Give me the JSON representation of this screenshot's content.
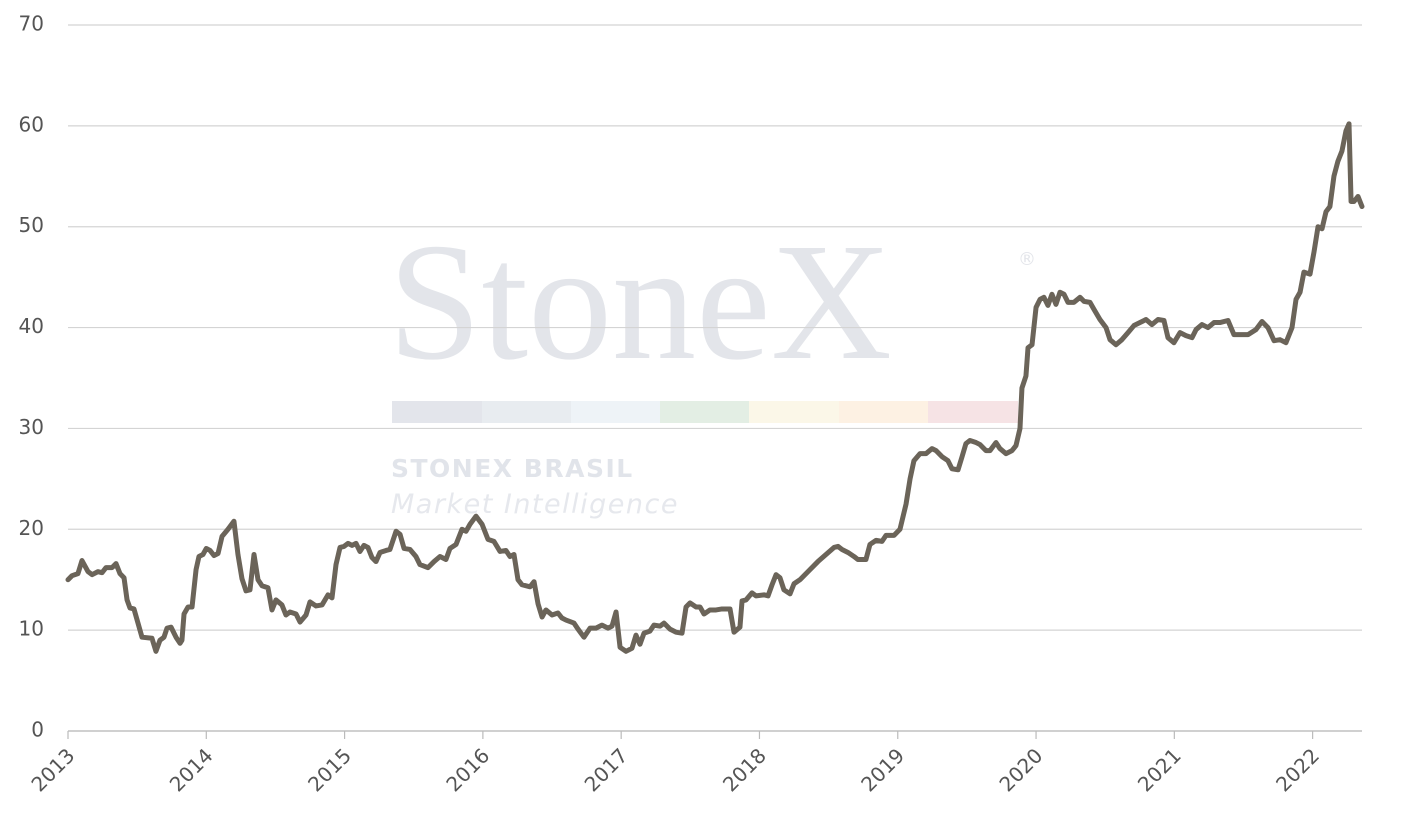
{
  "chart_data": {
    "type": "line",
    "watermark": {
      "logo": "StoneX",
      "mark": "®",
      "name": "STONEX BRASIL",
      "tagline": "Market Intelligence"
    },
    "color": "#6b6459",
    "grid": true,
    "xlim": [
      2013,
      2022.357
    ],
    "xticks": [
      2013,
      2014,
      2015,
      2016,
      2017,
      2018,
      2019,
      2020,
      2021,
      2022
    ],
    "ylim": [
      0,
      70
    ],
    "yticks": [
      0,
      10,
      20,
      30,
      40,
      50,
      60,
      70
    ],
    "x": [
      2013.0,
      2013.029,
      2013.072,
      2013.101,
      2013.145,
      2013.174,
      2013.217,
      2013.246,
      2013.275,
      2013.318,
      2013.347,
      2013.376,
      2013.405,
      2013.427,
      2013.448,
      2013.477,
      2013.535,
      2013.607,
      2013.636,
      2013.665,
      2013.694,
      2013.716,
      2013.745,
      2013.781,
      2013.81,
      2013.824,
      2013.839,
      2013.868,
      2013.897,
      2013.926,
      2013.947,
      2013.976,
      2014.0,
      2014.027,
      2014.056,
      2014.085,
      2014.114,
      2014.157,
      2014.2,
      2014.229,
      2014.258,
      2014.287,
      2014.316,
      2014.345,
      2014.374,
      2014.403,
      2014.446,
      2014.475,
      2014.504,
      2014.547,
      2014.576,
      2014.605,
      2014.649,
      2014.678,
      2014.721,
      2014.75,
      2014.793,
      2014.837,
      2014.88,
      2014.909,
      2014.938,
      2014.967,
      2014.996,
      2015.025,
      2015.054,
      2015.083,
      2015.111,
      2015.14,
      2015.169,
      2015.198,
      2015.227,
      2015.256,
      2015.3,
      2015.328,
      2015.372,
      2015.401,
      2015.43,
      2015.473,
      2015.516,
      2015.545,
      2015.603,
      2015.647,
      2015.69,
      2015.733,
      2015.762,
      2015.806,
      2015.849,
      2015.878,
      2015.907,
      2015.95,
      2015.994,
      2016.037,
      2016.08,
      2016.124,
      2016.167,
      2016.196,
      2016.225,
      2016.254,
      2016.283,
      2016.341,
      2016.37,
      2016.399,
      2016.428,
      2016.456,
      2016.5,
      2016.543,
      2016.572,
      2016.601,
      2016.659,
      2016.688,
      2016.731,
      2016.775,
      2016.818,
      2016.861,
      2016.905,
      2016.934,
      2016.963,
      2016.992,
      2017.035,
      2017.078,
      2017.107,
      2017.136,
      2017.165,
      2017.208,
      2017.237,
      2017.281,
      2017.31,
      2017.353,
      2017.396,
      2017.44,
      2017.469,
      2017.498,
      2017.541,
      2017.57,
      2017.599,
      2017.642,
      2017.686,
      2017.729,
      2017.787,
      2017.816,
      2017.859,
      2017.874,
      2017.903,
      2017.946,
      2017.975,
      2018.033,
      2018.062,
      2018.091,
      2018.12,
      2018.148,
      2018.177,
      2018.221,
      2018.25,
      2018.293,
      2018.351,
      2018.423,
      2018.481,
      2018.539,
      2018.568,
      2018.597,
      2018.64,
      2018.684,
      2018.712,
      2018.77,
      2018.799,
      2018.843,
      2018.886,
      2018.915,
      2018.973,
      2019.016,
      2019.06,
      2019.089,
      2019.117,
      2019.161,
      2019.204,
      2019.248,
      2019.277,
      2019.32,
      2019.363,
      2019.392,
      2019.436,
      2019.465,
      2019.493,
      2019.522,
      2019.566,
      2019.595,
      2019.638,
      2019.667,
      2019.71,
      2019.739,
      2019.783,
      2019.826,
      2019.855,
      2019.884,
      2019.898,
      2019.927,
      2019.942,
      2019.971,
      2020.0,
      2020.029,
      2020.057,
      2020.086,
      2020.115,
      2020.144,
      2020.173,
      2020.202,
      2020.231,
      2020.274,
      2020.318,
      2020.347,
      2020.39,
      2020.419,
      2020.462,
      2020.506,
      2020.535,
      2020.578,
      2020.621,
      2020.665,
      2020.708,
      2020.752,
      2020.795,
      2020.838,
      2020.882,
      2020.925,
      2020.954,
      2020.997,
      2021.041,
      2021.084,
      2021.128,
      2021.157,
      2021.2,
      2021.243,
      2021.287,
      2021.33,
      2021.388,
      2021.431,
      2021.475,
      2021.533,
      2021.59,
      2021.634,
      2021.677,
      2021.721,
      2021.764,
      2021.807,
      2021.851,
      2021.88,
      2021.909,
      2021.937,
      2021.981,
      2022.01,
      2022.039,
      2022.068,
      2022.097,
      2022.125,
      2022.154,
      2022.183,
      2022.212,
      2022.241,
      2022.263,
      2022.278,
      2022.299,
      2022.328,
      2022.357
    ],
    "values": [
      15.0,
      15.4,
      15.6,
      16.9,
      15.8,
      15.5,
      15.8,
      15.7,
      16.2,
      16.2,
      16.6,
      15.6,
      15.2,
      13.0,
      12.2,
      12.1,
      9.3,
      9.2,
      7.9,
      9.0,
      9.3,
      10.2,
      10.3,
      9.3,
      8.7,
      9.0,
      11.6,
      12.3,
      12.3,
      16.0,
      17.3,
      17.5,
      18.1,
      17.9,
      17.4,
      17.6,
      19.3,
      20.0,
      20.8,
      17.5,
      15.1,
      13.9,
      14.0,
      17.5,
      15.0,
      14.4,
      14.2,
      12.0,
      13.0,
      12.5,
      11.5,
      11.8,
      11.6,
      10.8,
      11.5,
      12.8,
      12.4,
      12.5,
      13.5,
      13.2,
      16.5,
      18.2,
      18.3,
      18.6,
      18.4,
      18.6,
      17.8,
      18.4,
      18.2,
      17.2,
      16.8,
      17.7,
      17.9,
      18.0,
      19.8,
      19.5,
      18.1,
      18.0,
      17.3,
      16.5,
      16.2,
      16.8,
      17.3,
      17.0,
      18.1,
      18.5,
      20.0,
      19.8,
      20.5,
      21.3,
      20.5,
      19.0,
      18.8,
      17.8,
      17.9,
      17.3,
      17.5,
      15.0,
      14.5,
      14.3,
      14.8,
      12.6,
      11.3,
      12.0,
      11.5,
      11.7,
      11.2,
      11.0,
      10.7,
      10.1,
      9.3,
      10.2,
      10.2,
      10.5,
      10.2,
      10.4,
      11.8,
      8.3,
      7.9,
      8.2,
      9.5,
      8.6,
      9.7,
      9.9,
      10.5,
      10.4,
      10.7,
      10.1,
      9.8,
      9.7,
      12.3,
      12.7,
      12.3,
      12.3,
      11.6,
      12.0,
      12.0,
      12.1,
      12.1,
      9.8,
      10.3,
      12.9,
      13.0,
      13.7,
      13.4,
      13.5,
      13.4,
      14.5,
      15.5,
      15.2,
      14.0,
      13.6,
      14.6,
      15.0,
      15.8,
      16.8,
      17.5,
      18.2,
      18.3,
      18.0,
      17.7,
      17.3,
      17.0,
      17.0,
      18.5,
      18.9,
      18.8,
      19.4,
      19.4,
      20.0,
      22.5,
      25.0,
      26.8,
      27.5,
      27.5,
      28.0,
      27.8,
      27.2,
      26.8,
      26.0,
      25.9,
      27.2,
      28.5,
      28.8,
      28.6,
      28.4,
      27.8,
      27.8,
      28.6,
      28.0,
      27.5,
      27.8,
      28.3,
      30.0,
      34.0,
      35.2,
      38.0,
      38.3,
      42.0,
      42.8,
      43.0,
      42.2,
      43.3,
      42.3,
      43.5,
      43.3,
      42.5,
      42.5,
      43.0,
      42.6,
      42.5,
      41.8,
      40.8,
      40.0,
      38.8,
      38.3,
      38.8,
      39.5,
      40.2,
      40.5,
      40.8,
      40.3,
      40.8,
      40.7,
      39.0,
      38.5,
      39.5,
      39.2,
      39.0,
      39.8,
      40.3,
      40.0,
      40.5,
      40.5,
      40.7,
      39.3,
      39.3,
      39.3,
      39.8,
      40.6,
      40.0,
      38.7,
      38.8,
      38.5,
      40.0,
      42.8,
      43.5,
      45.5,
      45.3,
      47.5,
      50.0,
      49.8,
      51.5,
      52.0,
      55.0,
      56.5,
      57.5,
      59.5,
      60.2,
      52.5,
      52.5,
      53.0,
      52.0
    ]
  }
}
